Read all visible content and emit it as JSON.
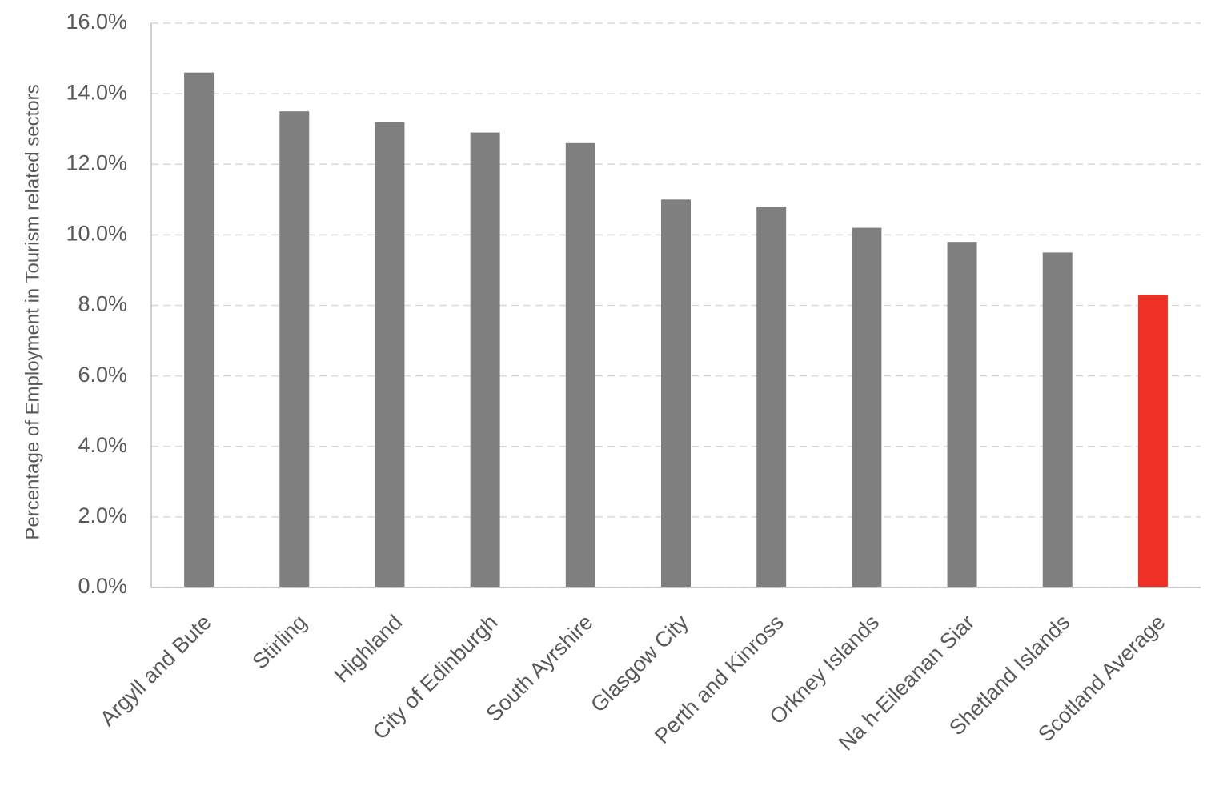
{
  "chart_data": {
    "type": "bar",
    "y_label": "Percentage of Employment in Tourism related sectors",
    "categories": [
      "Argyll and Bute",
      "Stirling",
      "Highland",
      "City of Edinburgh",
      "South Ayrshire",
      "Glasgow City",
      "Perth and Kinross",
      "Orkney Islands",
      "Na h-Eileanan Siar",
      "Shetland Islands",
      "Scotland Average"
    ],
    "values": [
      14.6,
      13.5,
      13.2,
      12.9,
      12.6,
      11.0,
      10.8,
      10.2,
      9.8,
      9.5,
      8.3
    ],
    "colors": [
      "#7f7f7f",
      "#7f7f7f",
      "#7f7f7f",
      "#7f7f7f",
      "#7f7f7f",
      "#7f7f7f",
      "#7f7f7f",
      "#7f7f7f",
      "#7f7f7f",
      "#7f7f7f",
      "#ee3124"
    ],
    "ylim": [
      0,
      16
    ],
    "yticks": [
      {
        "value": 0,
        "label": "0.0%"
      },
      {
        "value": 2,
        "label": "2.0%"
      },
      {
        "value": 4,
        "label": "4.0%"
      },
      {
        "value": 6,
        "label": "6.0%"
      },
      {
        "value": 8,
        "label": "8.0%"
      },
      {
        "value": 10,
        "label": "10.0%"
      },
      {
        "value": 12,
        "label": "12.0%"
      },
      {
        "value": 14,
        "label": "14.0%"
      },
      {
        "value": 16,
        "label": "16.0%"
      }
    ],
    "grid": true
  }
}
